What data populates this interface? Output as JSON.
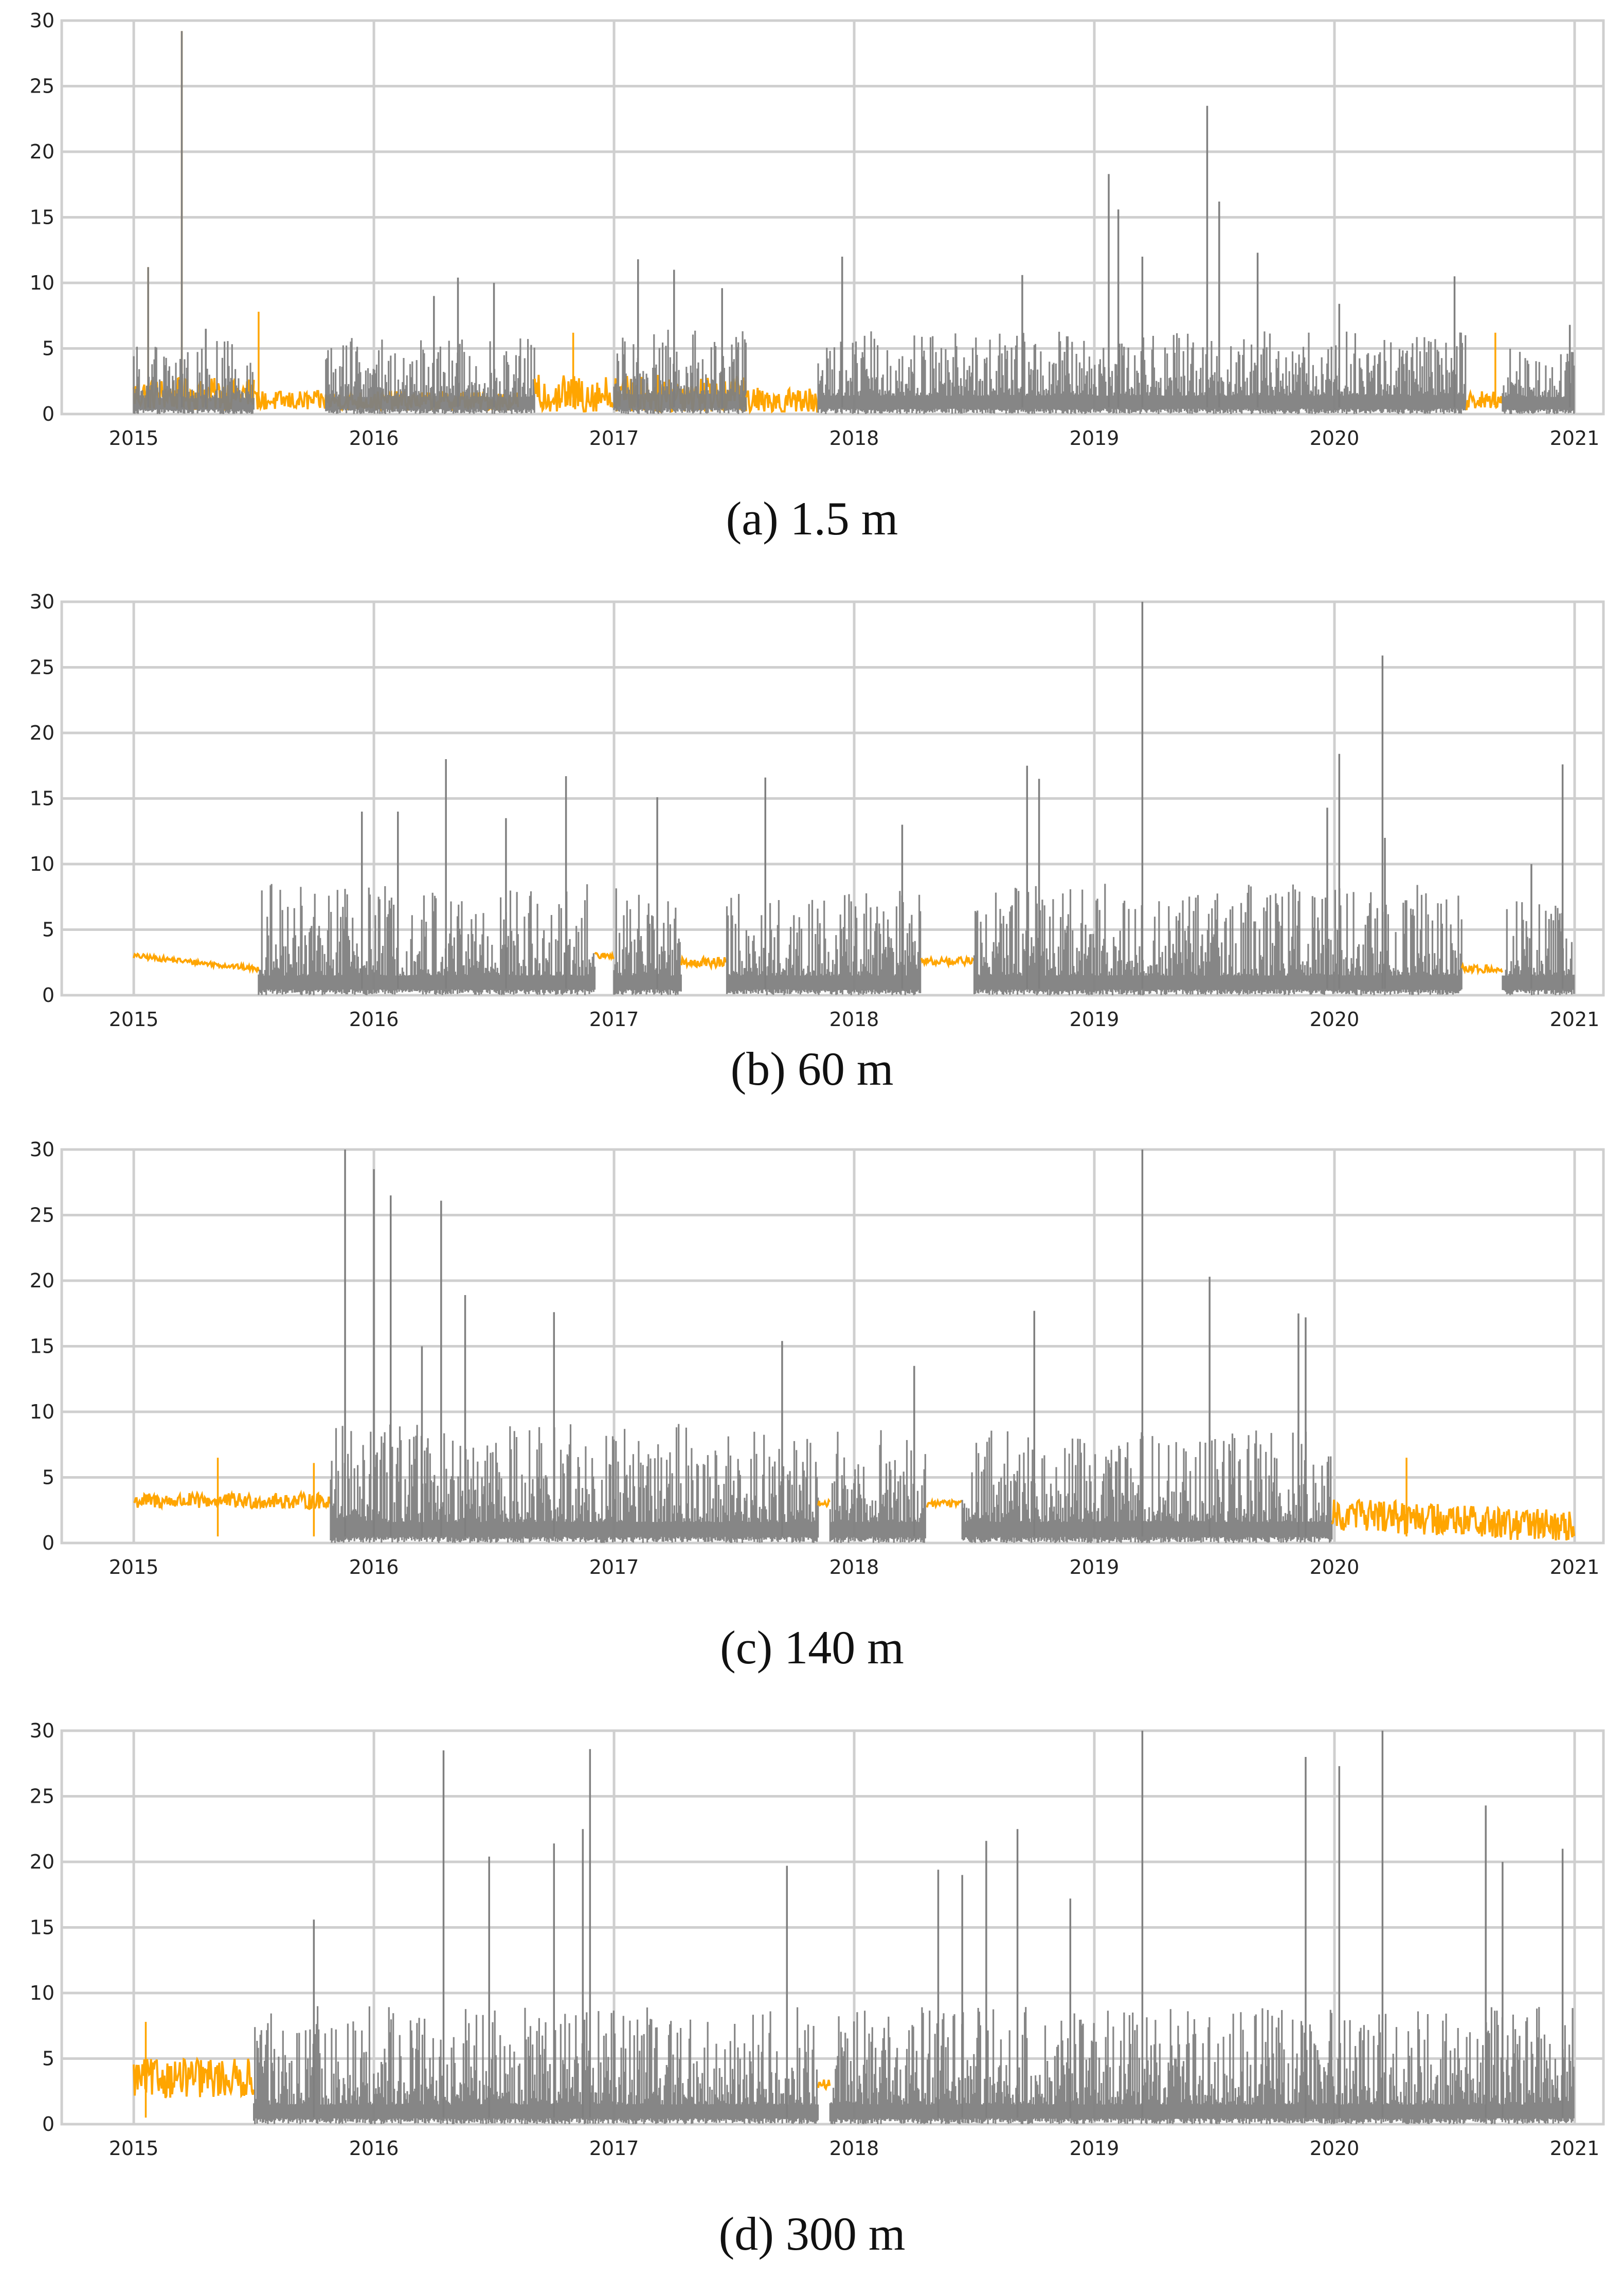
{
  "chart_data": [
    {
      "type": "line",
      "caption": "(a) 1.5 m",
      "x_ticks": [
        "2015",
        "2016",
        "2017",
        "2018",
        "2019",
        "2020",
        "2021"
      ],
      "y_ticks": [
        "0",
        "5",
        "10",
        "15",
        "20",
        "25",
        "30"
      ],
      "xlim": [
        "2015-01-01",
        "2021-01-01"
      ],
      "ylim": [
        0,
        30
      ],
      "grid": true,
      "series_colors": {
        "gray": "#7f7f7f",
        "orange": "#ffa500"
      },
      "segments": [
        {
          "color": "orange",
          "x0": 2015.0,
          "x1": 2015.5,
          "base": 1.5,
          "amp": 2.5,
          "spikes": [
            [
              2015.2,
              29.2
            ],
            [
              2015.06,
              11.2
            ]
          ]
        },
        {
          "color": "gray",
          "x0": 2015.0,
          "x1": 2015.5,
          "base": 1.2,
          "amp": 4.5,
          "spikes": [
            [
              2015.2,
              29.2
            ],
            [
              2015.06,
              11.2
            ],
            [
              2015.3,
              6.5
            ]
          ]
        },
        {
          "color": "orange",
          "x0": 2015.5,
          "x1": 2016.6,
          "base": 1.0,
          "amp": 1.5,
          "spikes": [
            [
              2015.52,
              7.8
            ]
          ]
        },
        {
          "color": "gray",
          "x0": 2015.8,
          "x1": 2016.67,
          "base": 1.3,
          "amp": 4.5,
          "spikes": [
            [
              2016.35,
              10.4
            ],
            [
              2016.25,
              9.0
            ],
            [
              2016.5,
              10.0
            ]
          ]
        },
        {
          "color": "orange",
          "x0": 2016.67,
          "x1": 2017.55,
          "base": 1.5,
          "amp": 3.0,
          "spikes": [
            [
              2016.83,
              6.2
            ]
          ]
        },
        {
          "color": "gray",
          "x0": 2017.0,
          "x1": 2017.55,
          "base": 1.5,
          "amp": 5.0,
          "spikes": [
            [
              2017.1,
              11.8
            ],
            [
              2017.25,
              11.0
            ],
            [
              2017.45,
              9.6
            ]
          ]
        },
        {
          "color": "orange",
          "x0": 2017.55,
          "x1": 2017.85,
          "base": 1.0,
          "amp": 2.0,
          "spikes": []
        },
        {
          "color": "gray",
          "x0": 2017.85,
          "x1": 2020.55,
          "base": 1.4,
          "amp": 5.0,
          "spikes": [
            [
              2017.95,
              12.0
            ],
            [
              2018.7,
              10.6
            ],
            [
              2019.06,
              18.3
            ],
            [
              2019.1,
              15.6
            ],
            [
              2019.2,
              12.0
            ],
            [
              2019.47,
              23.5
            ],
            [
              2019.52,
              16.2
            ],
            [
              2019.68,
              12.3
            ],
            [
              2020.02,
              8.4
            ],
            [
              2020.5,
              10.5
            ]
          ]
        },
        {
          "color": "orange",
          "x0": 2020.55,
          "x1": 2020.7,
          "base": 1.0,
          "amp": 1.5,
          "spikes": [
            [
              2020.67,
              6.2
            ]
          ]
        },
        {
          "color": "gray",
          "x0": 2020.7,
          "x1": 2021.0,
          "base": 1.3,
          "amp": 4.0,
          "spikes": [
            [
              2020.98,
              6.8
            ]
          ]
        }
      ]
    },
    {
      "type": "line",
      "caption": "(b) 60 m",
      "x_ticks": [
        "2015",
        "2016",
        "2017",
        "2018",
        "2019",
        "2020",
        "2021"
      ],
      "y_ticks": [
        "0",
        "5",
        "10",
        "15",
        "20",
        "25",
        "30"
      ],
      "xlim": [
        "2015-01-01",
        "2021-01-01"
      ],
      "ylim": [
        0,
        30
      ],
      "grid": true,
      "series_colors": {
        "gray": "#7f7f7f",
        "orange": "#ffa500"
      },
      "segments": [
        {
          "color": "orange",
          "x0": 2015.0,
          "x1": 2015.52,
          "base": 3.0,
          "amp": 0.4,
          "trend": -1.0,
          "spikes": []
        },
        {
          "color": "gray",
          "x0": 2015.52,
          "x1": 2016.92,
          "base": 1.5,
          "amp": 7.0,
          "spikes": [
            [
              2016.3,
              18.0
            ],
            [
              2016.8,
              16.7
            ],
            [
              2016.1,
              14.0
            ],
            [
              2015.95,
              14.0
            ],
            [
              2016.55,
              13.5
            ]
          ]
        },
        {
          "color": "orange",
          "x0": 2016.92,
          "x1": 2017.0,
          "base": 3.0,
          "amp": 0.5,
          "spikes": []
        },
        {
          "color": "gray",
          "x0": 2017.0,
          "x1": 2017.28,
          "base": 1.5,
          "amp": 7.0,
          "spikes": [
            [
              2017.18,
              15.1
            ]
          ]
        },
        {
          "color": "orange",
          "x0": 2017.28,
          "x1": 2017.47,
          "base": 2.5,
          "amp": 0.8,
          "spikes": []
        },
        {
          "color": "gray",
          "x0": 2017.47,
          "x1": 2018.28,
          "base": 1.5,
          "amp": 6.5,
          "spikes": [
            [
              2017.63,
              16.6
            ],
            [
              2018.2,
              13.0
            ]
          ]
        },
        {
          "color": "orange",
          "x0": 2018.28,
          "x1": 2018.5,
          "base": 2.6,
          "amp": 0.6,
          "spikes": []
        },
        {
          "color": "gray",
          "x0": 2018.5,
          "x1": 2020.53,
          "base": 1.5,
          "amp": 7.0,
          "spikes": [
            [
              2018.72,
              17.5
            ],
            [
              2018.77,
              16.5
            ],
            [
              2019.2,
              30.0
            ],
            [
              2019.97,
              14.3
            ],
            [
              2020.02,
              18.4
            ],
            [
              2020.2,
              25.9
            ],
            [
              2020.21,
              12.0
            ]
          ]
        },
        {
          "color": "orange",
          "x0": 2020.53,
          "x1": 2020.7,
          "base": 2.0,
          "amp": 0.6,
          "spikes": []
        },
        {
          "color": "gray",
          "x0": 2020.7,
          "x1": 2021.0,
          "base": 1.5,
          "amp": 6.0,
          "spikes": [
            [
              2020.95,
              17.6
            ],
            [
              2020.82,
              10.0
            ]
          ]
        }
      ]
    },
    {
      "type": "line",
      "caption": "(c) 140 m",
      "x_ticks": [
        "2015",
        "2016",
        "2017",
        "2018",
        "2019",
        "2020",
        "2021"
      ],
      "y_ticks": [
        "0",
        "5",
        "10",
        "15",
        "20",
        "25",
        "30"
      ],
      "xlim": [
        "2015-01-01",
        "2021-01-01"
      ],
      "ylim": [
        0,
        30
      ],
      "grid": true,
      "series_colors": {
        "gray": "#7f7f7f",
        "orange": "#ffa500"
      },
      "segments": [
        {
          "color": "orange",
          "x0": 2015.0,
          "x1": 2015.82,
          "base": 3.2,
          "amp": 1.2,
          "spikes": [
            [
              2015.35,
              6.5
            ],
            [
              2015.75,
              6.1
            ]
          ]
        },
        {
          "color": "gray",
          "x0": 2015.82,
          "x1": 2017.85,
          "base": 1.6,
          "amp": 7.5,
          "spikes": [
            [
              2015.88,
              30.0
            ],
            [
              2016.0,
              28.5
            ],
            [
              2016.07,
              26.5
            ],
            [
              2016.28,
              26.1
            ],
            [
              2016.2,
              15.0
            ],
            [
              2016.38,
              18.9
            ],
            [
              2016.75,
              17.6
            ],
            [
              2017.7,
              15.4
            ]
          ]
        },
        {
          "color": "orange",
          "x0": 2017.85,
          "x1": 2017.9,
          "base": 3.0,
          "amp": 0.5,
          "spikes": []
        },
        {
          "color": "gray",
          "x0": 2017.9,
          "x1": 2018.3,
          "base": 1.6,
          "amp": 7.0,
          "spikes": [
            [
              2018.25,
              13.5
            ]
          ]
        },
        {
          "color": "orange",
          "x0": 2018.3,
          "x1": 2018.45,
          "base": 3.0,
          "amp": 0.5,
          "spikes": []
        },
        {
          "color": "gray",
          "x0": 2018.45,
          "x1": 2019.99,
          "base": 1.6,
          "amp": 7.0,
          "spikes": [
            [
              2018.75,
              17.7
            ],
            [
              2019.2,
              30.0
            ],
            [
              2019.48,
              20.3
            ],
            [
              2019.85,
              17.5
            ],
            [
              2019.88,
              17.2
            ]
          ]
        },
        {
          "color": "orange",
          "x0": 2019.99,
          "x1": 2021.0,
          "base": 2.2,
          "amp": 2.5,
          "trend": -1.0,
          "spikes": [
            [
              2020.3,
              6.5
            ]
          ]
        }
      ]
    },
    {
      "type": "line",
      "caption": "(d) 300 m",
      "x_ticks": [
        "2015",
        "2016",
        "2017",
        "2018",
        "2019",
        "2020",
        "2021"
      ],
      "y_ticks": [
        "0",
        "5",
        "10",
        "15",
        "20",
        "25",
        "30"
      ],
      "xlim": [
        "2015-01-01",
        "2021-01-01"
      ],
      "ylim": [
        0,
        30
      ],
      "grid": true,
      "series_colors": {
        "gray": "#7f7f7f",
        "orange": "#ffa500"
      },
      "segments": [
        {
          "color": "orange",
          "x0": 2015.0,
          "x1": 2015.5,
          "base": 3.5,
          "amp": 3.0,
          "spikes": [
            [
              2015.05,
              7.8
            ]
          ]
        },
        {
          "color": "gray",
          "x0": 2015.5,
          "x1": 2017.85,
          "base": 1.5,
          "amp": 7.5,
          "spikes": [
            [
              2016.29,
              28.5
            ],
            [
              2016.9,
              28.6
            ],
            [
              2016.87,
              22.5
            ],
            [
              2016.48,
              20.4
            ],
            [
              2016.75,
              21.4
            ],
            [
              2017.72,
              19.7
            ],
            [
              2015.75,
              15.6
            ]
          ]
        },
        {
          "color": "orange",
          "x0": 2017.85,
          "x1": 2017.9,
          "base": 3.0,
          "amp": 0.8,
          "spikes": []
        },
        {
          "color": "gray",
          "x0": 2017.9,
          "x1": 2021.0,
          "base": 1.5,
          "amp": 7.5,
          "spikes": [
            [
              2018.35,
              19.4
            ],
            [
              2018.45,
              19.0
            ],
            [
              2018.55,
              21.6
            ],
            [
              2018.68,
              22.5
            ],
            [
              2018.9,
              17.2
            ],
            [
              2019.2,
              30.0
            ],
            [
              2019.88,
              28.0
            ],
            [
              2020.02,
              27.3
            ],
            [
              2020.2,
              30.0
            ],
            [
              2020.63,
              24.3
            ],
            [
              2020.7,
              20.0
            ],
            [
              2020.95,
              21.0
            ]
          ]
        }
      ]
    }
  ]
}
